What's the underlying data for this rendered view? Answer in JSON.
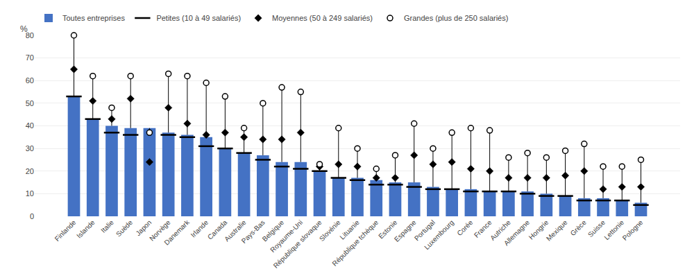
{
  "chart_data": {
    "type": "bar",
    "ylabel": "%",
    "categories": [
      "Finlande",
      "Islande",
      "Italie",
      "Suède",
      "Japon",
      "Norvège",
      "Danemark",
      "Irlande",
      "Canada",
      "Australie",
      "Pays-Bas",
      "Belgique",
      "Royaume-Uni",
      "République slovaque",
      "Slovénie",
      "Lituanie",
      "République tchèque",
      "Estonie",
      "Espagne",
      "Portugal",
      "Luxembourg",
      "Corée",
      "France",
      "Autriche",
      "Allemagne",
      "Hongrie",
      "Mexique",
      "Grèce",
      "Suisse",
      "Lettonie",
      "Pologne"
    ],
    "series": [
      {
        "name": "Toutes entreprises",
        "type": "bar",
        "color": "#4472C4",
        "values": [
          53,
          43,
          40,
          39,
          39,
          37,
          36,
          35,
          30,
          28,
          27,
          24,
          24,
          20,
          17,
          17,
          16,
          15,
          15,
          13,
          12,
          12,
          11,
          11,
          11,
          10,
          9,
          8,
          8,
          7,
          6
        ]
      },
      {
        "name": "Petites (10 à 49 salariés)",
        "type": "scatter",
        "marker": "dash",
        "color": "#000000",
        "values": [
          53,
          43,
          37,
          36,
          null,
          36,
          35,
          31,
          30,
          28,
          25,
          22,
          21,
          20,
          17,
          16,
          14,
          14,
          13,
          12,
          12,
          11,
          11,
          11,
          10,
          9,
          9,
          7,
          7,
          7,
          5
        ]
      },
      {
        "name": "Moyennes (50 à 249 salariés)",
        "type": "scatter",
        "marker": "diamond",
        "color": "#000000",
        "values": [
          65,
          51,
          43,
          52,
          24,
          48,
          41,
          36,
          37,
          35,
          34,
          34,
          37,
          22,
          23,
          22,
          17,
          17,
          27,
          23,
          24,
          21,
          20,
          17,
          17,
          17,
          18,
          20,
          12,
          13,
          13
        ]
      },
      {
        "name": "Grandes (plus de 250 salariés)",
        "type": "scatter",
        "marker": "circle-open",
        "color": "#000000",
        "values": [
          80,
          62,
          48,
          62,
          37,
          63,
          62,
          59,
          53,
          39,
          50,
          57,
          55,
          23,
          39,
          30,
          21,
          27,
          41,
          30,
          37,
          39,
          38,
          26,
          28,
          26,
          29,
          32,
          22,
          22,
          25
        ]
      }
    ],
    "ylim": [
      0,
      80
    ],
    "yticks": [
      0,
      10,
      20,
      30,
      40,
      50,
      60,
      70,
      80
    ],
    "grid": true,
    "legend": "top"
  }
}
